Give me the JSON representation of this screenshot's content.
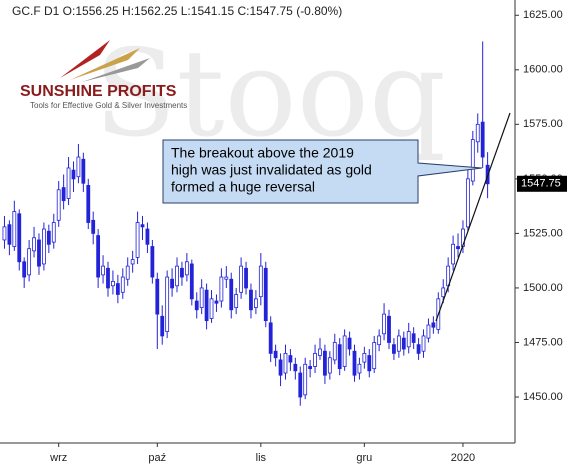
{
  "chart_data": {
    "type": "candlestick",
    "title": "GC.F  D1  O:1556.25  H:1562.25  L:1541.15  C:1547.75  (-0.80%)",
    "brand": "SUNSHINE PROFITS",
    "tagline": "Tools for Effective Gold & Silver Investments",
    "watermark": "Stooq",
    "annotation": [
      "The breakout above the 2019",
      "high was just invalidated as gold",
      "formed a huge reversal"
    ],
    "color": "#2323d8",
    "ylim": [
      1428,
      1632
    ],
    "yticks": [
      {
        "value": 1450,
        "label": "1450.00"
      },
      {
        "value": 1475,
        "label": "1475.00"
      },
      {
        "value": 1500,
        "label": "1500.00"
      },
      {
        "value": 1525,
        "label": "1525.00"
      },
      {
        "value": 1550,
        "label": "1550.00"
      },
      {
        "value": 1575,
        "label": "1575.00"
      },
      {
        "value": 1600,
        "label": "1600.00"
      },
      {
        "value": 1625,
        "label": "1625.00"
      }
    ],
    "last_price": 1547.75,
    "categories": [
      null,
      null,
      null,
      null,
      null,
      null,
      null,
      null,
      null,
      null,
      null,
      "wrz",
      null,
      null,
      null,
      null,
      null,
      null,
      null,
      null,
      null,
      null,
      null,
      null,
      null,
      null,
      null,
      null,
      null,
      null,
      null,
      "paź",
      null,
      null,
      null,
      null,
      null,
      null,
      null,
      null,
      null,
      null,
      null,
      null,
      null,
      null,
      null,
      null,
      null,
      null,
      null,
      null,
      "lis",
      null,
      null,
      null,
      null,
      null,
      null,
      null,
      null,
      null,
      null,
      null,
      null,
      null,
      null,
      null,
      null,
      null,
      null,
      null,
      null,
      "gru",
      null,
      null,
      null,
      null,
      null,
      null,
      null,
      null,
      null,
      null,
      null,
      null,
      null,
      null,
      null,
      null,
      null,
      null,
      null,
      "2020",
      null,
      null,
      null,
      null,
      null
    ],
    "ohlc": [
      [
        1522,
        1533,
        1518,
        1528
      ],
      [
        1529,
        1531,
        1515,
        1520
      ],
      [
        1519,
        1540,
        1517,
        1535
      ],
      [
        1534,
        1536,
        1508,
        1512
      ],
      [
        1512,
        1514,
        1500,
        1505
      ],
      [
        1506,
        1522,
        1503,
        1518
      ],
      [
        1517,
        1528,
        1514,
        1523
      ],
      [
        1522,
        1525,
        1506,
        1510
      ],
      [
        1511,
        1530,
        1508,
        1527
      ],
      [
        1526,
        1529,
        1516,
        1520
      ],
      [
        1521,
        1534,
        1518,
        1530
      ],
      [
        1531,
        1549,
        1528,
        1545
      ],
      [
        1546,
        1552,
        1536,
        1540
      ],
      [
        1541,
        1560,
        1538,
        1555
      ],
      [
        1554,
        1558,
        1544,
        1550
      ],
      [
        1551,
        1566,
        1548,
        1560
      ],
      [
        1559,
        1562,
        1544,
        1548
      ],
      [
        1547,
        1550,
        1527,
        1530
      ],
      [
        1531,
        1535,
        1520,
        1525
      ],
      [
        1524,
        1527,
        1500,
        1505
      ],
      [
        1506,
        1515,
        1502,
        1510
      ],
      [
        1509,
        1512,
        1496,
        1500
      ],
      [
        1501,
        1508,
        1497,
        1503
      ],
      [
        1502,
        1506,
        1493,
        1497
      ],
      [
        1498,
        1509,
        1495,
        1505
      ],
      [
        1504,
        1514,
        1501,
        1510
      ],
      [
        1511,
        1517,
        1507,
        1513
      ],
      [
        1514,
        1535,
        1511,
        1530
      ],
      [
        1529,
        1533,
        1522,
        1528
      ],
      [
        1527,
        1530,
        1516,
        1520
      ],
      [
        1519,
        1522,
        1502,
        1505
      ],
      [
        1504,
        1507,
        1472,
        1488
      ],
      [
        1487,
        1492,
        1474,
        1478
      ],
      [
        1480,
        1508,
        1477,
        1505
      ],
      [
        1504,
        1509,
        1496,
        1500
      ],
      [
        1501,
        1514,
        1498,
        1510
      ],
      [
        1509,
        1512,
        1501,
        1505
      ],
      [
        1506,
        1516,
        1503,
        1512
      ],
      [
        1511,
        1513,
        1492,
        1495
      ],
      [
        1494,
        1498,
        1486,
        1490
      ],
      [
        1491,
        1504,
        1488,
        1500
      ],
      [
        1499,
        1502,
        1481,
        1485
      ],
      [
        1486,
        1499,
        1484,
        1495
      ],
      [
        1494,
        1497,
        1489,
        1493
      ],
      [
        1494,
        1509,
        1491,
        1505
      ],
      [
        1504,
        1510,
        1500,
        1505
      ],
      [
        1504,
        1507,
        1486,
        1490
      ],
      [
        1491,
        1500,
        1488,
        1497
      ],
      [
        1498,
        1514,
        1495,
        1510
      ],
      [
        1509,
        1512,
        1497,
        1500
      ],
      [
        1499,
        1502,
        1486,
        1490
      ],
      [
        1491,
        1499,
        1488,
        1495
      ],
      [
        1496,
        1516,
        1492,
        1510
      ],
      [
        1509,
        1512,
        1482,
        1485
      ],
      [
        1484,
        1487,
        1466,
        1470
      ],
      [
        1471,
        1474,
        1464,
        1468
      ],
      [
        1467,
        1470,
        1455,
        1460
      ],
      [
        1461,
        1474,
        1458,
        1470
      ],
      [
        1469,
        1472,
        1462,
        1466
      ],
      [
        1465,
        1468,
        1458,
        1462
      ],
      [
        1461,
        1464,
        1446,
        1450
      ],
      [
        1451,
        1468,
        1449,
        1465
      ],
      [
        1464,
        1467,
        1459,
        1463
      ],
      [
        1464,
        1474,
        1461,
        1470
      ],
      [
        1469,
        1477,
        1467,
        1472
      ],
      [
        1471,
        1474,
        1456,
        1460
      ],
      [
        1461,
        1471,
        1458,
        1468
      ],
      [
        1467,
        1479,
        1465,
        1475
      ],
      [
        1474,
        1477,
        1460,
        1463
      ],
      [
        1464,
        1481,
        1462,
        1478
      ],
      [
        1477,
        1480,
        1469,
        1472
      ],
      [
        1471,
        1474,
        1457,
        1460
      ],
      [
        1461,
        1468,
        1458,
        1465
      ],
      [
        1466,
        1473,
        1463,
        1470
      ],
      [
        1469,
        1472,
        1459,
        1462
      ],
      [
        1463,
        1478,
        1461,
        1475
      ],
      [
        1474,
        1481,
        1471,
        1478
      ],
      [
        1479,
        1493,
        1476,
        1488
      ],
      [
        1487,
        1490,
        1472,
        1475
      ],
      [
        1474,
        1477,
        1467,
        1470
      ],
      [
        1471,
        1481,
        1468,
        1478
      ],
      [
        1477,
        1480,
        1469,
        1472
      ],
      [
        1473,
        1484,
        1470,
        1480
      ],
      [
        1479,
        1482,
        1472,
        1475
      ],
      [
        1474,
        1477,
        1467,
        1470
      ],
      [
        1471,
        1481,
        1468,
        1478
      ],
      [
        1477,
        1486,
        1475,
        1483
      ],
      [
        1484,
        1487,
        1479,
        1482
      ],
      [
        1481,
        1498,
        1479,
        1495
      ],
      [
        1496,
        1504,
        1493,
        1500
      ],
      [
        1501,
        1514,
        1498,
        1510
      ],
      [
        1511,
        1524,
        1508,
        1520
      ],
      [
        1519,
        1525,
        1514,
        1518
      ],
      [
        1519,
        1531,
        1516,
        1527
      ],
      [
        1528,
        1554,
        1526,
        1550
      ],
      [
        1549,
        1572,
        1547,
        1568
      ],
      [
        1567,
        1580,
        1562,
        1575
      ],
      [
        1576,
        1613,
        1555,
        1560
      ],
      [
        1556.25,
        1562.25,
        1541.15,
        1547.75
      ]
    ]
  }
}
